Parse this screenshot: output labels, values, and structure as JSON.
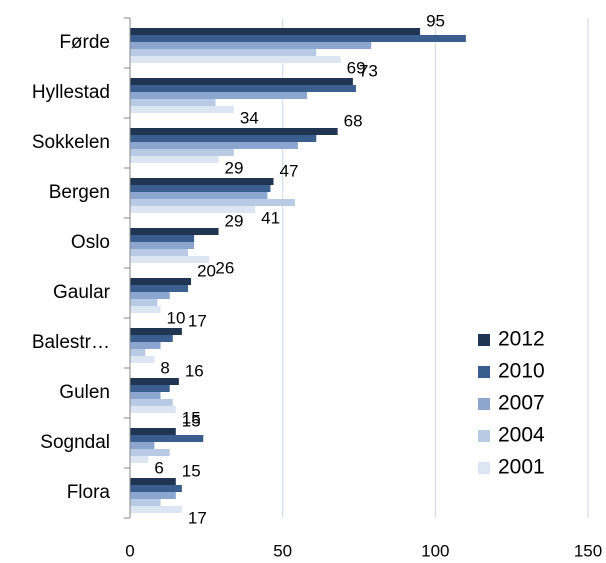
{
  "chart_data": {
    "type": "bar",
    "orientation": "horizontal",
    "categories": [
      "Førde",
      "Hyllestad",
      "Sokkelen",
      "Bergen",
      "Oslo",
      "Gaular",
      "Balestr…",
      "Gulen",
      "Sogndal",
      "Flora"
    ],
    "series": [
      {
        "name": "2012",
        "color": "#1f3552",
        "show_labels": true,
        "values": [
          95,
          73,
          68,
          47,
          29,
          20,
          17,
          16,
          15,
          15
        ]
      },
      {
        "name": "2010",
        "color": "#3a5f8f",
        "show_labels": false,
        "values": [
          110,
          74,
          61,
          46,
          21,
          19,
          14,
          13,
          24,
          17
        ]
      },
      {
        "name": "2007",
        "color": "#8ca6cf",
        "show_labels": false,
        "values": [
          79,
          58,
          55,
          45,
          21,
          13,
          10,
          10,
          8,
          15
        ]
      },
      {
        "name": "2004",
        "color": "#b9cbe4",
        "show_labels": false,
        "values": [
          61,
          28,
          34,
          54,
          19,
          9,
          5,
          14,
          13,
          10
        ]
      },
      {
        "name": "2001",
        "color": "#dce6f2",
        "show_labels": true,
        "values": [
          69,
          34,
          29,
          41,
          26,
          10,
          8,
          15,
          6,
          17
        ]
      }
    ],
    "xlim": [
      0,
      150
    ],
    "xticks": [
      0,
      50,
      100,
      150
    ],
    "grid": true,
    "legend": "right"
  }
}
